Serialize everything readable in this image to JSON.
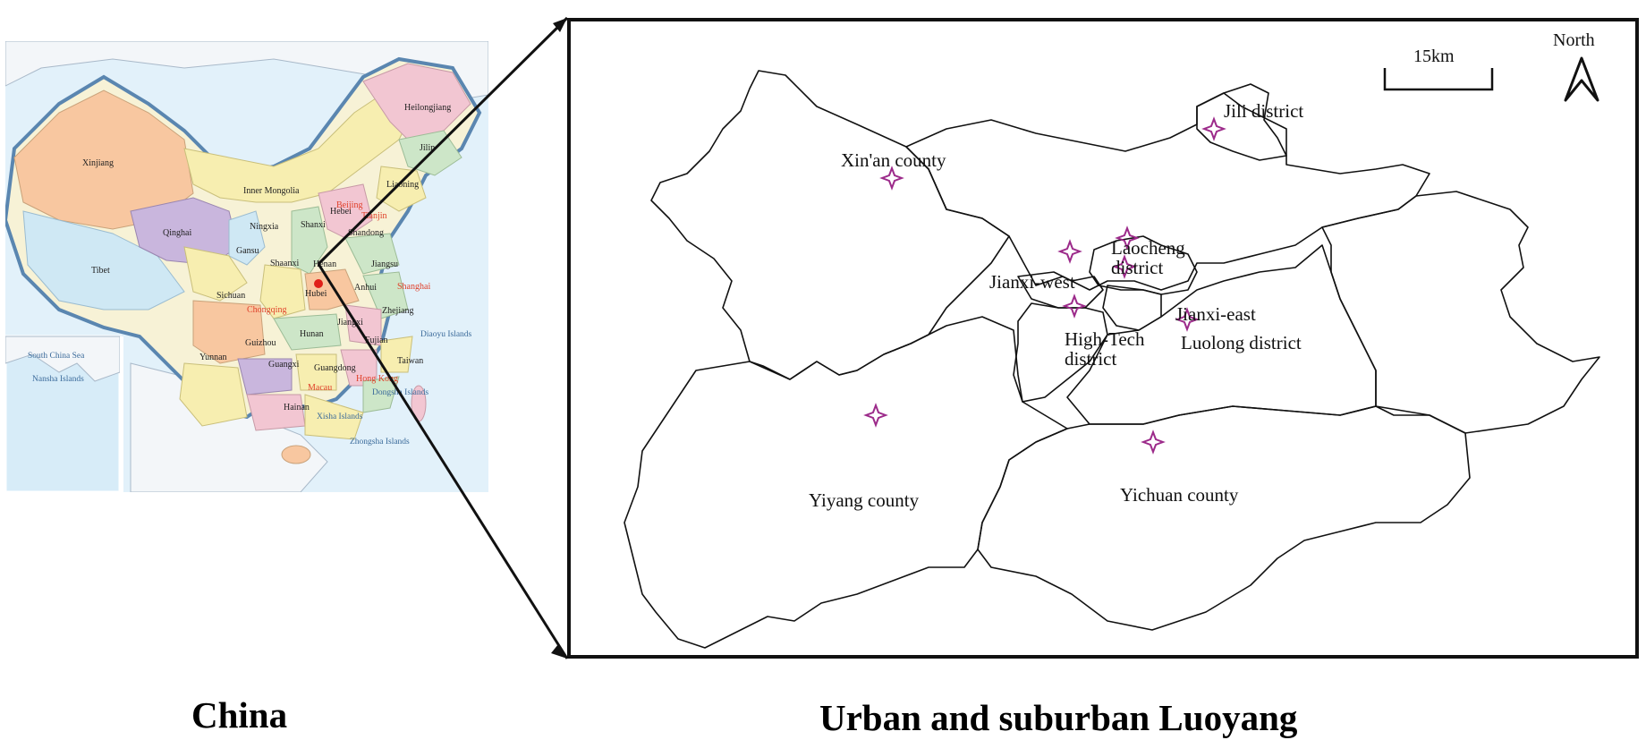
{
  "china_map": {
    "provinces": [
      "Heilongjiang",
      "Jilin",
      "Liaoning",
      "Xinjiang",
      "Inner Mongolia",
      "Hebei",
      "Ningxia",
      "Shanxi",
      "Shandong",
      "Qinghai",
      "Gansu",
      "Shaanxi",
      "Henan",
      "Jiangsu",
      "Anhui",
      "Tibet",
      "Sichuan",
      "Hubei",
      "Zhejiang",
      "Jiangxi",
      "Guizhou",
      "Hunan",
      "Fujian",
      "Yunnan",
      "Guangxi",
      "Guangdong",
      "Taiwan",
      "Hainan"
    ],
    "municipalities": [
      "Beijing",
      "Tianjin",
      "Shanghai",
      "Chongqing",
      "Hong Kong",
      "Macau"
    ],
    "sea_labels": [
      "South China Sea",
      "Nansha Islands",
      "Diaoyu Islands",
      "Dongsha Islands",
      "Xisha Islands",
      "Zhongsha Islands"
    ],
    "marker_location": "Henan",
    "colors": {
      "ocean": "#d7ecf8",
      "border": "#5a86b0",
      "marker": "#e0201a",
      "highlight": "#e0402a"
    }
  },
  "luoyang_map": {
    "districts": [
      {
        "name": "Xin'an county"
      },
      {
        "name": "Jili district"
      },
      {
        "name": "Laocheng district"
      },
      {
        "name": "Jianxi-west"
      },
      {
        "name": "Jianxi-east"
      },
      {
        "name": "High-Tech district"
      },
      {
        "name": "Luolong district"
      },
      {
        "name": "Yiyang county"
      },
      {
        "name": "Yichuan county"
      }
    ],
    "scale_bar": "15km",
    "north_label": "North",
    "colors": {
      "star": "#9c2a8a",
      "boundary": "#111111"
    }
  },
  "captions": {
    "china": "China",
    "luoyang": "Urban and suburban Luoyang"
  }
}
